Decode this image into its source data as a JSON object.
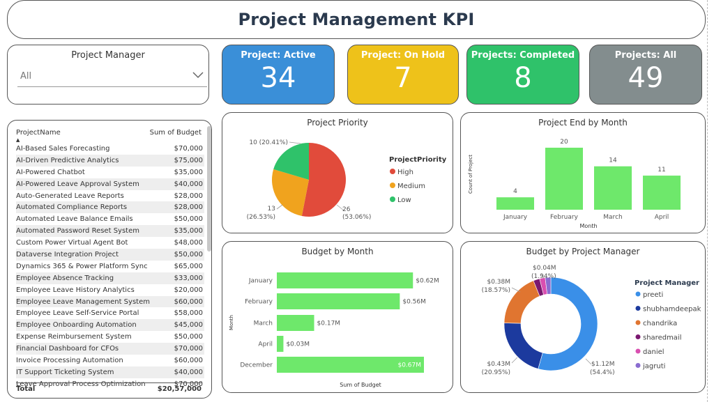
{
  "header": {
    "title": "Project Management KPI"
  },
  "slicer": {
    "label": "Project Manager",
    "value": "All"
  },
  "kpis": [
    {
      "label": "Project: Active",
      "value": "34",
      "color": "#3a8fd8"
    },
    {
      "label": "Project: On Hold",
      "value": "7",
      "color": "#eec21a"
    },
    {
      "label": "Projects: Completed",
      "value": "8",
      "color": "#2fc26a"
    },
    {
      "label": "Projects: All",
      "value": "49",
      "color": "#838d8e"
    }
  ],
  "table": {
    "col1": "ProjectName",
    "col2": "Sum of Budget",
    "rows": [
      [
        "AI-Based Sales Forecasting",
        "$70,000"
      ],
      [
        "AI-Driven Predictive Analytics",
        "$75,000"
      ],
      [
        "AI-Powered Chatbot",
        "$35,000"
      ],
      [
        "AI-Powered Leave Approval System",
        "$40,000"
      ],
      [
        "Auto-Generated Leave Reports",
        "$28,000"
      ],
      [
        "Automated Compliance Reports",
        "$28,000"
      ],
      [
        "Automated Leave Balance Emails",
        "$50,000"
      ],
      [
        "Automated Password Reset System",
        "$35,000"
      ],
      [
        "Custom Power Virtual Agent Bot",
        "$48,000"
      ],
      [
        "Dataverse Integration Project",
        "$50,000"
      ],
      [
        "Dynamics 365 & Power Platform Sync",
        "$65,000"
      ],
      [
        "Employee Absence Tracking",
        "$33,000"
      ],
      [
        "Employee Leave History Analytics",
        "$20,000"
      ],
      [
        "Employee Leave Management System",
        "$60,000"
      ],
      [
        "Employee Leave Self-Service Portal",
        "$58,000"
      ],
      [
        "Employee Onboarding Automation",
        "$45,000"
      ],
      [
        "Expense Reimbursement System",
        "$50,000"
      ],
      [
        "Financial Dashboard for CFOs",
        "$70,000"
      ],
      [
        "Invoice Processing Automation",
        "$60,000"
      ],
      [
        "IT Support Ticketing System",
        "$40,000"
      ],
      [
        "Leave Approval Process Optimization",
        "$70,000"
      ]
    ],
    "total_label": "Total",
    "total_value": "$20,57,000"
  },
  "chart_data": [
    {
      "type": "pie",
      "title": "Project Priority",
      "legend_title": "ProjectPriority",
      "legend_position": "right",
      "slices": [
        {
          "name": "High",
          "value": 26,
          "label": "26",
          "pct": "(53.06%)",
          "color": "#e14b3b"
        },
        {
          "name": "Medium",
          "value": 13,
          "label": "13",
          "pct": "(26.53%)",
          "color": "#f0a31e"
        },
        {
          "name": "Low",
          "value": 10,
          "label": "10 (20.41%)",
          "pct": "",
          "color": "#2fc26a"
        }
      ]
    },
    {
      "type": "bar",
      "title": "Project End by Month",
      "xlabel": "Month",
      "ylabel": "Count of Project",
      "categories": [
        "January",
        "February",
        "March",
        "April"
      ],
      "values": [
        4,
        20,
        14,
        11
      ],
      "ylim": [
        0,
        20
      ],
      "color": "#6ee86b"
    },
    {
      "type": "bar",
      "orientation": "horizontal",
      "title": "Budget by Month",
      "xlabel": "Sum of Budget",
      "ylabel": "Month",
      "categories": [
        "January",
        "February",
        "March",
        "April",
        "December"
      ],
      "values": [
        0.62,
        0.56,
        0.17,
        0.03,
        0.67
      ],
      "labels": [
        "$0.62M",
        "$0.56M",
        "$0.17M",
        "$0.03M",
        "$0.67M"
      ],
      "xlim": [
        0,
        0.67
      ],
      "color": "#6ee86b"
    },
    {
      "type": "pie",
      "donut": true,
      "title": "Budget by Project Manager",
      "legend_title": "Project Manager",
      "legend_position": "right",
      "slices": [
        {
          "name": "preeti",
          "value": 54.4,
          "label": "$1.12M",
          "pct": "(54.4%)",
          "color": "#3a8fe8"
        },
        {
          "name": "shubhamdeepak",
          "value": 20.95,
          "label": "$0.43M",
          "pct": "(20.95%)",
          "color": "#1c3a9e"
        },
        {
          "name": "chandrika",
          "value": 18.57,
          "label": "$0.38M",
          "pct": "(18.57%)",
          "color": "#e07530"
        },
        {
          "name": "sharedmail",
          "value": 2.2,
          "label": "",
          "pct": "",
          "color": "#7a1870"
        },
        {
          "name": "daniel",
          "value": 1.94,
          "label": "$0.04M",
          "pct": "(1.94%)",
          "color": "#d94fb0"
        },
        {
          "name": "jagruti",
          "value": 1.94,
          "label": "",
          "pct": "",
          "color": "#8a6cd0"
        }
      ]
    }
  ]
}
